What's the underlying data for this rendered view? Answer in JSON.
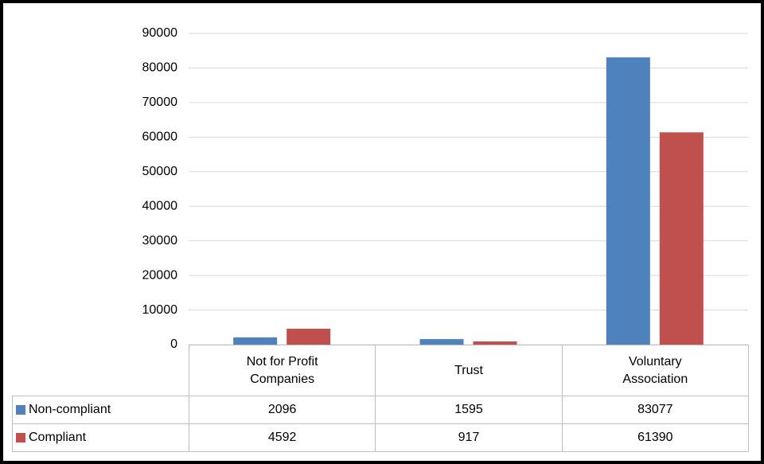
{
  "chart_data": {
    "type": "bar",
    "categories": [
      "Not for Profit Companies",
      "Trust",
      "Voluntary Association"
    ],
    "series": [
      {
        "name": "Non-compliant",
        "color": "#4f81bd",
        "values": [
          2096,
          1595,
          83077
        ]
      },
      {
        "name": "Compliant",
        "color": "#c0504d",
        "values": [
          4592,
          917,
          61390
        ]
      }
    ],
    "ylim": [
      0,
      90000
    ],
    "yticks": [
      0,
      10000,
      20000,
      30000,
      40000,
      50000,
      60000,
      70000,
      80000,
      90000
    ],
    "grid": true,
    "data_table": true
  }
}
